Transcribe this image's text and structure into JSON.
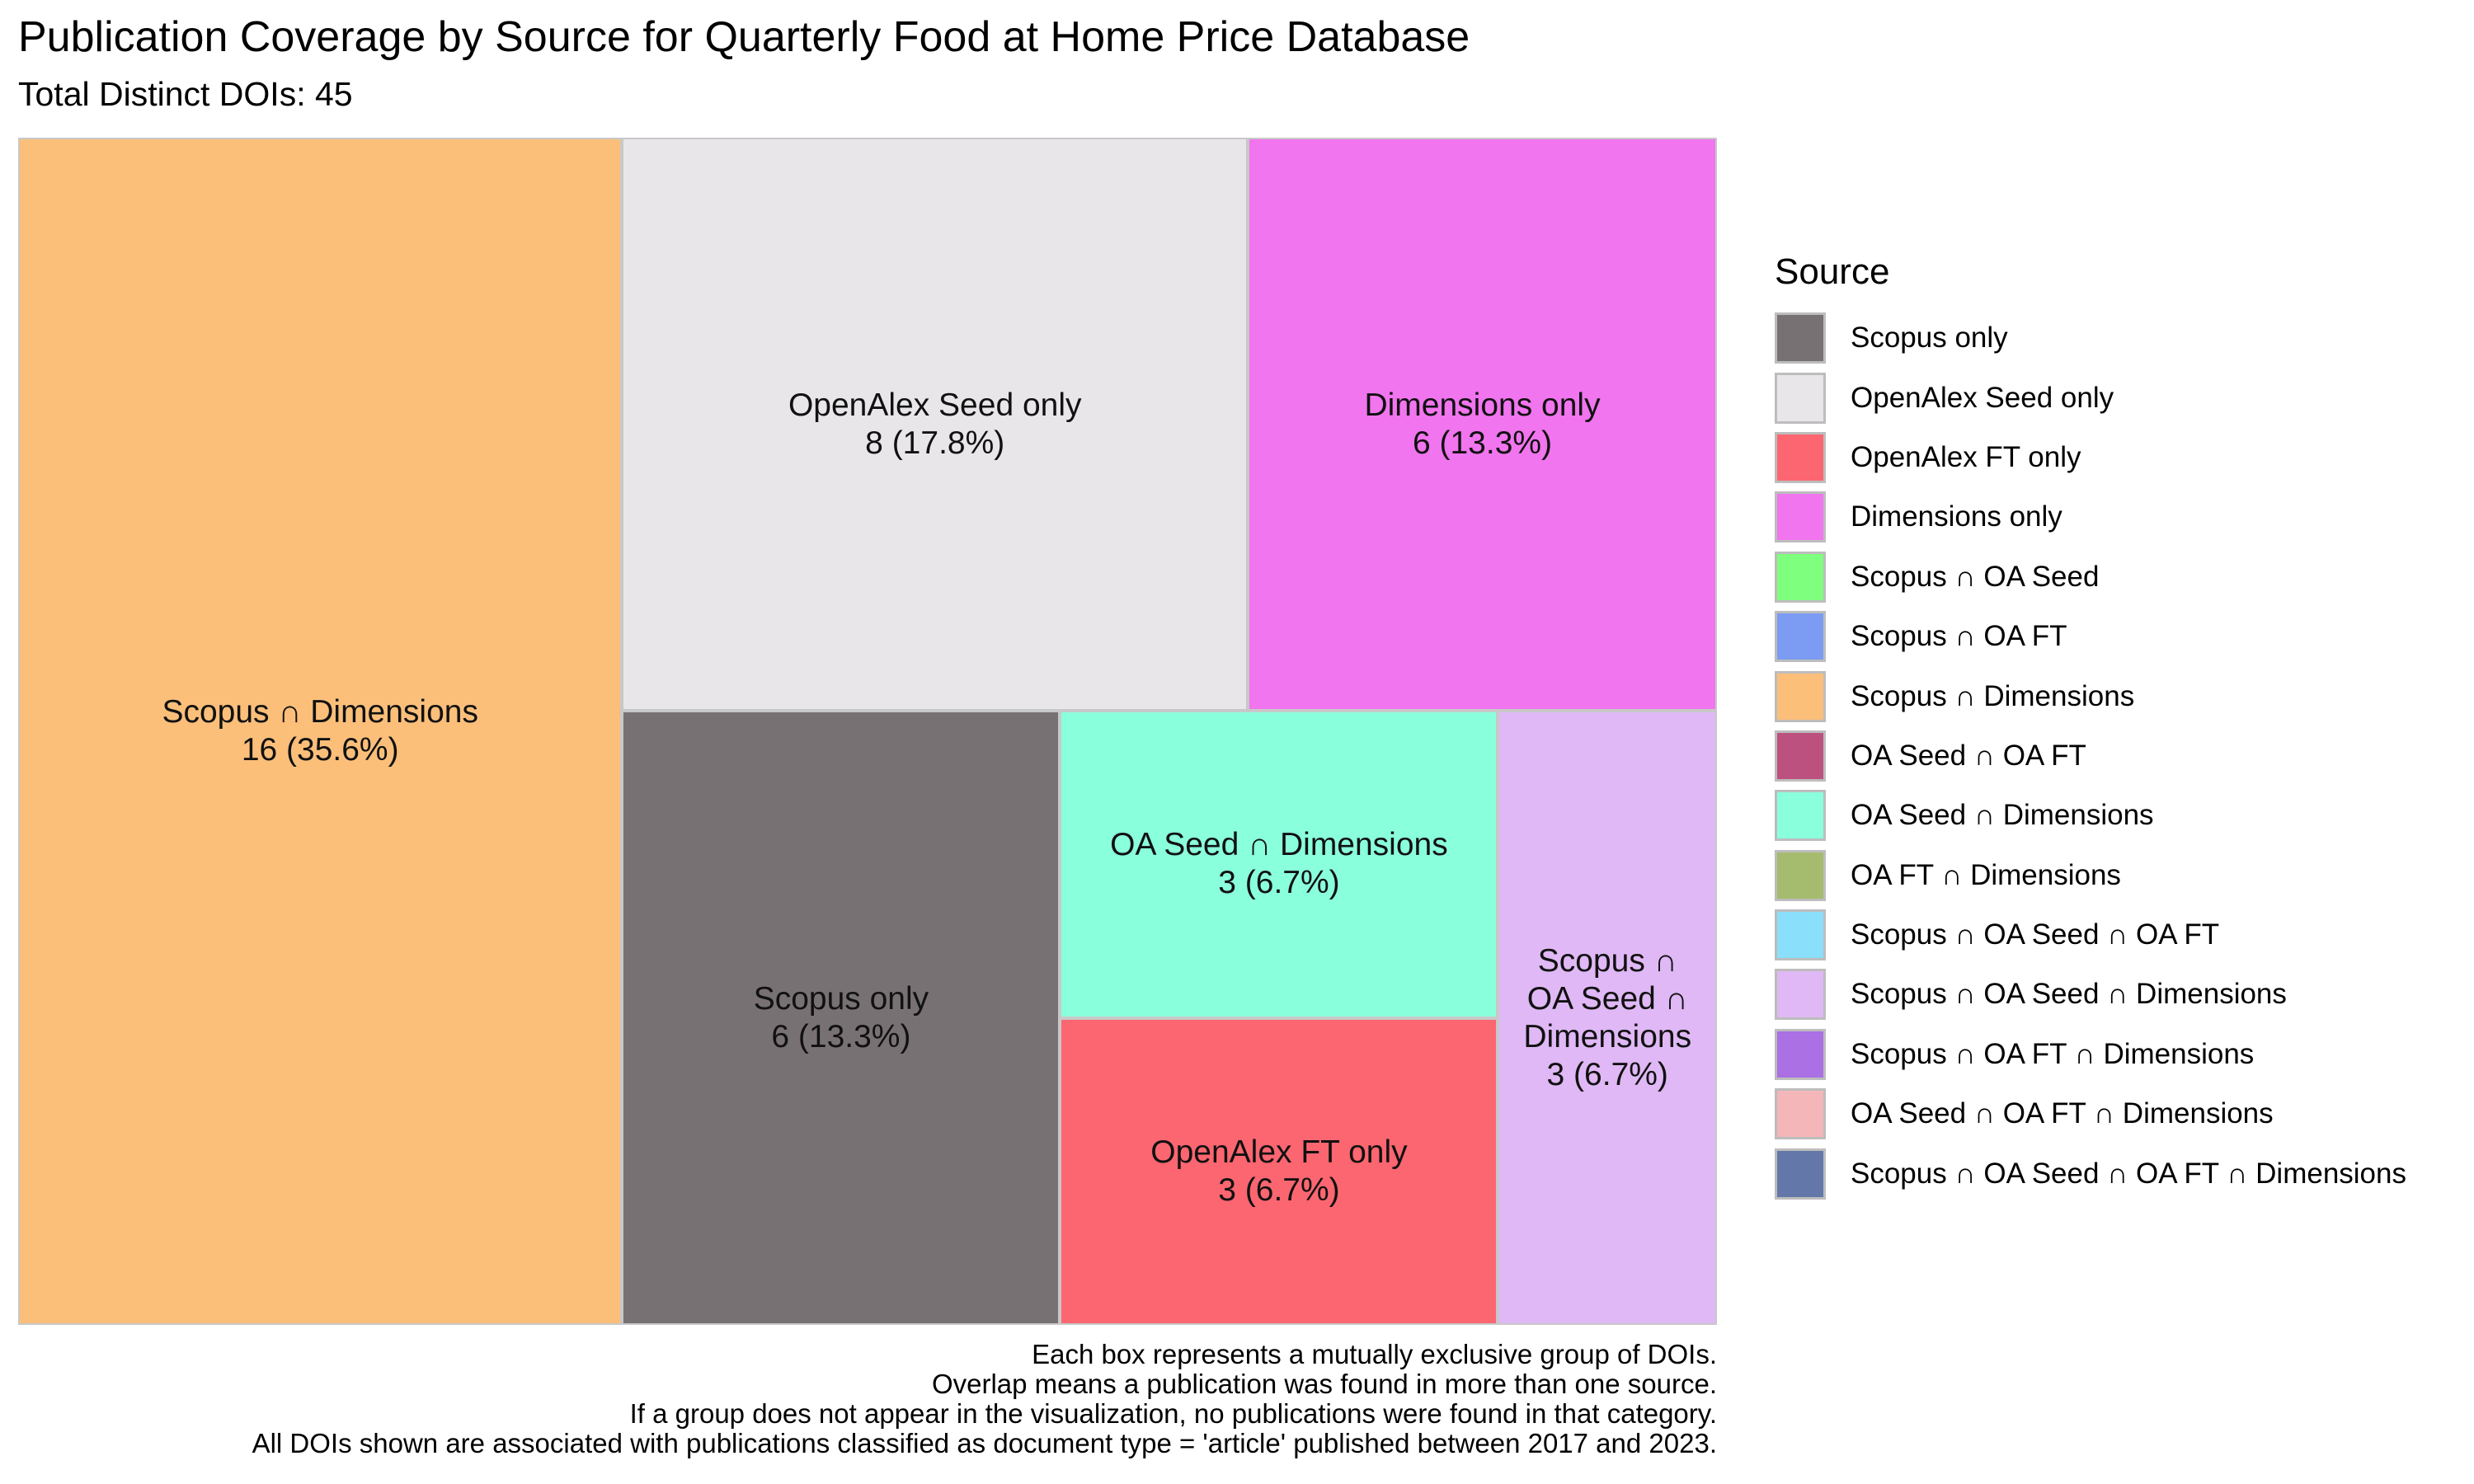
{
  "chart_data": {
    "type": "treemap",
    "title": "Publication Coverage by Source for Quarterly Food at Home Price Database",
    "subtitle": "Total Distinct DOIs: 45",
    "total": 45,
    "tiles": [
      {
        "name": "Scopus ∩ Dimensions",
        "label_lines": [
          "Scopus ∩ Dimensions"
        ],
        "value": 16,
        "percent": "35.6%",
        "color": "#FBBF7A"
      },
      {
        "name": "OpenAlex Seed only",
        "label_lines": [
          "OpenAlex Seed only"
        ],
        "value": 8,
        "percent": "17.8%",
        "color": "#E8E6E9"
      },
      {
        "name": "Dimensions only",
        "label_lines": [
          "Dimensions only"
        ],
        "value": 6,
        "percent": "13.3%",
        "color": "#F175EE"
      },
      {
        "name": "Scopus only",
        "label_lines": [
          "Scopus only"
        ],
        "value": 6,
        "percent": "13.3%",
        "color": "#787173"
      },
      {
        "name": "OA Seed ∩ Dimensions",
        "label_lines": [
          "OA Seed ∩ Dimensions"
        ],
        "value": 3,
        "percent": "6.7%",
        "color": "#8AFFDC"
      },
      {
        "name": "OpenAlex FT only",
        "label_lines": [
          "OpenAlex FT only"
        ],
        "value": 3,
        "percent": "6.7%",
        "color": "#FC6670"
      },
      {
        "name": "Scopus ∩ OA Seed ∩ Dimensions",
        "label_lines": [
          "Scopus ∩",
          "OA Seed ∩",
          "Dimensions"
        ],
        "value": 3,
        "percent": "6.7%",
        "color": "#DFB8F5"
      }
    ],
    "legend": {
      "title": "Source",
      "position": "right",
      "items": [
        {
          "label": "Scopus only",
          "color": "#787173"
        },
        {
          "label": "OpenAlex Seed only",
          "color": "#E8E6E9"
        },
        {
          "label": "OpenAlex FT only",
          "color": "#FC6670"
        },
        {
          "label": "Dimensions only",
          "color": "#F175EE"
        },
        {
          "label": "Scopus ∩ OA Seed",
          "color": "#7EFF7E"
        },
        {
          "label": "Scopus ∩ OA FT",
          "color": "#7B9CF2"
        },
        {
          "label": "Scopus ∩ Dimensions",
          "color": "#FBBF7A"
        },
        {
          "label": "OA Seed ∩ OA FT",
          "color": "#BC517F"
        },
        {
          "label": "OA Seed ∩ Dimensions",
          "color": "#8AFFDC"
        },
        {
          "label": "OA FT ∩ Dimensions",
          "color": "#A5BB6E"
        },
        {
          "label": "Scopus ∩ OA Seed ∩ OA FT",
          "color": "#8ADFFA"
        },
        {
          "label": "Scopus ∩ OA Seed ∩ Dimensions",
          "color": "#DFB8F5"
        },
        {
          "label": "Scopus ∩ OA FT ∩ Dimensions",
          "color": "#AA70E4"
        },
        {
          "label": "OA Seed ∩ OA FT ∩ Dimensions",
          "color": "#F4B6B8"
        },
        {
          "label": "Scopus ∩ OA Seed ∩ OA FT ∩ Dimensions",
          "color": "#6377A8"
        }
      ]
    },
    "caption": [
      "Each box represents a mutually exclusive group of DOIs.",
      "Overlap means a publication was found in more than one source.",
      "If a group does not appear in the visualization, no publications were found in that category.",
      "All DOIs shown are associated with publications classified as document type = 'article' published between 2017 and 2023."
    ]
  }
}
